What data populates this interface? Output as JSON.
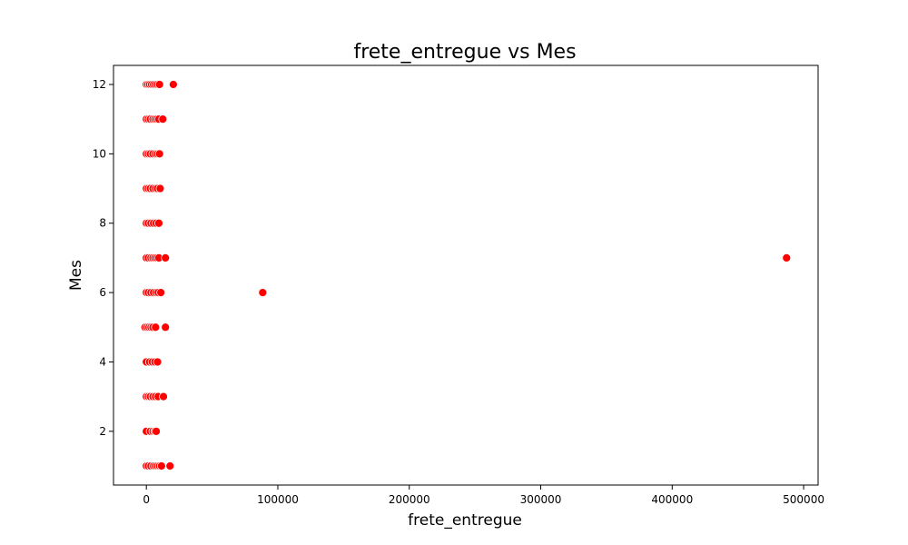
{
  "chart_data": {
    "type": "scatter",
    "title": "frete_entregue vs Mes",
    "xlabel": "frete_entregue",
    "ylabel": "Mes",
    "xlim": [
      -25000,
      511000
    ],
    "ylim": [
      0.45,
      12.55
    ],
    "x_ticks": [
      0,
      100000,
      200000,
      300000,
      400000,
      500000
    ],
    "x_tick_labels": [
      "0",
      "100000",
      "200000",
      "300000",
      "400000",
      "500000"
    ],
    "y_ticks": [
      2,
      4,
      6,
      8,
      10,
      12
    ],
    "y_tick_labels": [
      "2",
      "4",
      "6",
      "8",
      "10",
      "12"
    ],
    "grid": false,
    "marker_color": "#ff0000",
    "marker_edge_color": "#ffffff",
    "points": [
      {
        "x": 0,
        "y": 12
      },
      {
        "x": 1200,
        "y": 12
      },
      {
        "x": 2500,
        "y": 12
      },
      {
        "x": 4000,
        "y": 12
      },
      {
        "x": 5500,
        "y": 12
      },
      {
        "x": 7000,
        "y": 12
      },
      {
        "x": 8500,
        "y": 12
      },
      {
        "x": 10000,
        "y": 12
      },
      {
        "x": 20500,
        "y": 12
      },
      {
        "x": 0,
        "y": 11
      },
      {
        "x": 1500,
        "y": 11
      },
      {
        "x": 3000,
        "y": 11
      },
      {
        "x": 5000,
        "y": 11
      },
      {
        "x": 6500,
        "y": 11
      },
      {
        "x": 8000,
        "y": 11
      },
      {
        "x": 9500,
        "y": 11
      },
      {
        "x": 12500,
        "y": 11
      },
      {
        "x": 0,
        "y": 10
      },
      {
        "x": 1500,
        "y": 10
      },
      {
        "x": 3000,
        "y": 10
      },
      {
        "x": 5000,
        "y": 10
      },
      {
        "x": 7000,
        "y": 10
      },
      {
        "x": 8500,
        "y": 10
      },
      {
        "x": 10000,
        "y": 10
      },
      {
        "x": 0,
        "y": 9
      },
      {
        "x": 1500,
        "y": 9
      },
      {
        "x": 3000,
        "y": 9
      },
      {
        "x": 5000,
        "y": 9
      },
      {
        "x": 7000,
        "y": 9
      },
      {
        "x": 8500,
        "y": 9
      },
      {
        "x": 10500,
        "y": 9
      },
      {
        "x": 0,
        "y": 8
      },
      {
        "x": 1500,
        "y": 8
      },
      {
        "x": 3500,
        "y": 8
      },
      {
        "x": 5500,
        "y": 8
      },
      {
        "x": 7500,
        "y": 8
      },
      {
        "x": 9500,
        "y": 8
      },
      {
        "x": 0,
        "y": 7
      },
      {
        "x": 1500,
        "y": 7
      },
      {
        "x": 3500,
        "y": 7
      },
      {
        "x": 5000,
        "y": 7
      },
      {
        "x": 6500,
        "y": 7
      },
      {
        "x": 8000,
        "y": 7
      },
      {
        "x": 9500,
        "y": 7
      },
      {
        "x": 14500,
        "y": 7
      },
      {
        "x": 487000,
        "y": 7
      },
      {
        "x": 0,
        "y": 6
      },
      {
        "x": 1500,
        "y": 6
      },
      {
        "x": 3500,
        "y": 6
      },
      {
        "x": 5500,
        "y": 6
      },
      {
        "x": 7500,
        "y": 6
      },
      {
        "x": 9000,
        "y": 6
      },
      {
        "x": 11000,
        "y": 6
      },
      {
        "x": 88500,
        "y": 6
      },
      {
        "x": -1000,
        "y": 5
      },
      {
        "x": 500,
        "y": 5
      },
      {
        "x": 2000,
        "y": 5
      },
      {
        "x": 3500,
        "y": 5
      },
      {
        "x": 5000,
        "y": 5
      },
      {
        "x": 7000,
        "y": 5
      },
      {
        "x": 14500,
        "y": 5
      },
      {
        "x": 0,
        "y": 4
      },
      {
        "x": 2500,
        "y": 4
      },
      {
        "x": 4500,
        "y": 4
      },
      {
        "x": 6500,
        "y": 4
      },
      {
        "x": 8500,
        "y": 4
      },
      {
        "x": 0,
        "y": 3
      },
      {
        "x": 1500,
        "y": 3
      },
      {
        "x": 3000,
        "y": 3
      },
      {
        "x": 5000,
        "y": 3
      },
      {
        "x": 7000,
        "y": 3
      },
      {
        "x": 9000,
        "y": 3
      },
      {
        "x": 13000,
        "y": 3
      },
      {
        "x": 0,
        "y": 2
      },
      {
        "x": 3000,
        "y": 2
      },
      {
        "x": 5000,
        "y": 2
      },
      {
        "x": 6500,
        "y": 2
      },
      {
        "x": 7500,
        "y": 2
      },
      {
        "x": 0,
        "y": 1
      },
      {
        "x": 1500,
        "y": 1
      },
      {
        "x": 3500,
        "y": 1
      },
      {
        "x": 5500,
        "y": 1
      },
      {
        "x": 7000,
        "y": 1
      },
      {
        "x": 8500,
        "y": 1
      },
      {
        "x": 10000,
        "y": 1
      },
      {
        "x": 11500,
        "y": 1
      },
      {
        "x": 18000,
        "y": 1
      }
    ]
  }
}
